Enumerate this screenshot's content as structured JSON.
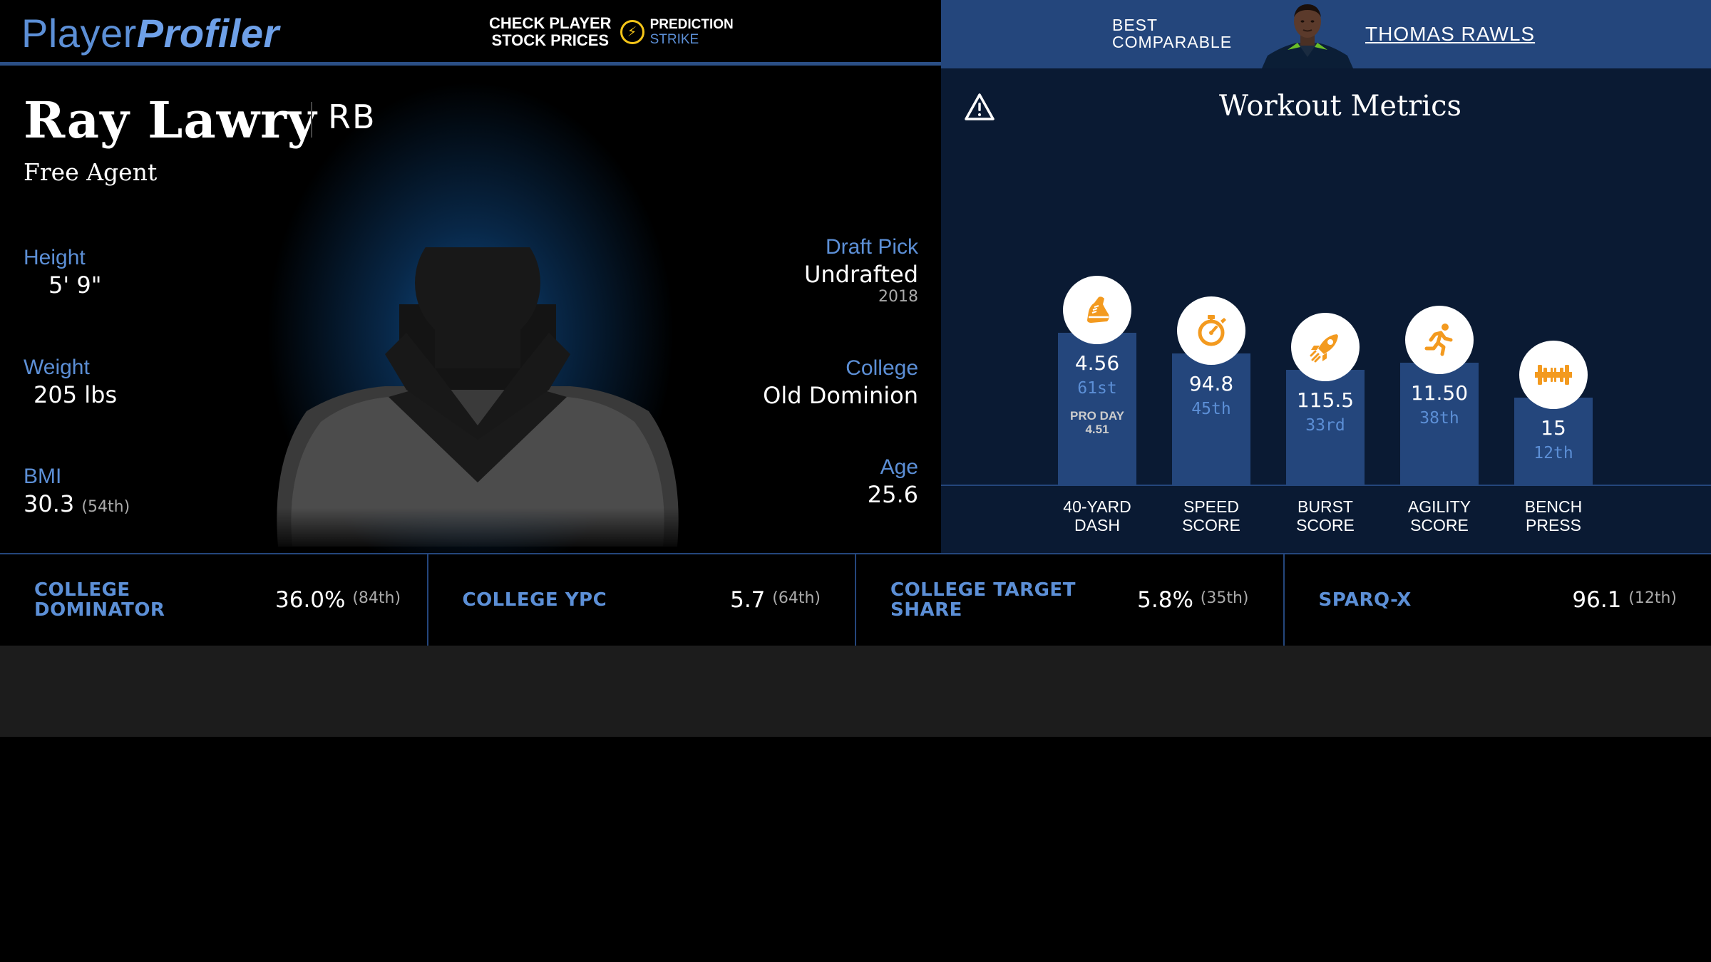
{
  "header": {
    "logo_part1": "Player",
    "logo_part2": "Profiler",
    "promo_line1": "CHECK PLAYER",
    "promo_line2": "STOCK PRICES",
    "promo_brand1": "PREDICTION",
    "promo_brand2": "STRIKE",
    "bolt_icon": "lightning-bolt-icon"
  },
  "comparable": {
    "label_line1": "BEST",
    "label_line2": "COMPARABLE",
    "name": "THOMAS RAWLS"
  },
  "player": {
    "name": "Ray Lawry",
    "position": "RB",
    "team": "Free Agent",
    "height_label": "Height",
    "height_value": "5' 9\"",
    "weight_label": "Weight",
    "weight_value": "205 lbs",
    "bmi_label": "BMI",
    "bmi_value": "30.3",
    "bmi_rank": "(54th)",
    "draft_label": "Draft Pick",
    "draft_value": "Undrafted",
    "draft_year": "2018",
    "college_label": "College",
    "college_value": "Old Dominion",
    "age_label": "Age",
    "age_value": "25.6"
  },
  "workout": {
    "title": "Workout Metrics",
    "metrics": [
      {
        "label_line1": "40-YARD",
        "label_line2": "DASH",
        "value": "4.56",
        "pct": "61st",
        "pro_label": "PRO DAY",
        "pro_value": "4.51",
        "icon": "running-shoe-icon",
        "percentile": 61
      },
      {
        "label_line1": "SPEED",
        "label_line2": "SCORE",
        "value": "94.8",
        "pct": "45th",
        "icon": "stopwatch-icon",
        "percentile": 45
      },
      {
        "label_line1": "BURST",
        "label_line2": "SCORE",
        "value": "115.5",
        "pct": "33rd",
        "icon": "rocket-icon",
        "percentile": 33
      },
      {
        "label_line1": "AGILITY",
        "label_line2": "SCORE",
        "value": "11.50",
        "pct": "38th",
        "icon": "running-person-icon",
        "percentile": 38
      },
      {
        "label_line1": "BENCH",
        "label_line2": "PRESS",
        "value": "15",
        "pct": "12th",
        "icon": "barbell-icon",
        "percentile": 12
      }
    ]
  },
  "bottom_stats": [
    {
      "label": "COLLEGE DOMINATOR",
      "value": "36.0%",
      "rank": "(84th)"
    },
    {
      "label": "COLLEGE YPC",
      "value": "5.7",
      "rank": "(64th)"
    },
    {
      "label": "COLLEGE TARGET SHARE",
      "value": "5.8%",
      "rank": "(35th)"
    },
    {
      "label": "SPARQ-X",
      "value": "96.1",
      "rank": "(12th)"
    }
  ],
  "colors": {
    "accent_blue": "#5c8fd6",
    "header_blue": "#24467c",
    "icon_orange": "#f39a1f",
    "bolt_yellow": "#f5c518"
  }
}
